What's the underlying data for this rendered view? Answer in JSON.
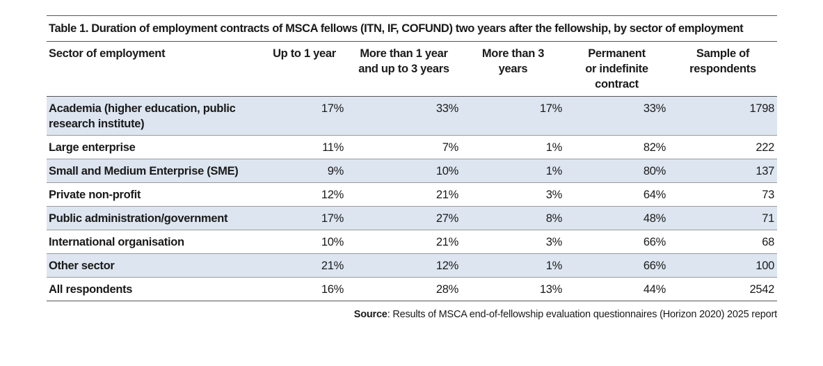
{
  "caption": "Table 1. Duration of employment contracts of MSCA fellows (ITN, IF, COFUND) two years after the fellowship, by sector of employment",
  "columns": [
    {
      "line1": "Sector of employment",
      "line2": "",
      "line3": ""
    },
    {
      "line1": "Up to 1 year",
      "line2": "",
      "line3": ""
    },
    {
      "line1": "More than 1 year",
      "line2": "and up to 3 years",
      "line3": ""
    },
    {
      "line1": "More than 3",
      "line2": "years",
      "line3": ""
    },
    {
      "line1": "Permanent",
      "line2": "or indefinite",
      "line3": "contract"
    },
    {
      "line1": "Sample of",
      "line2": "respondents",
      "line3": ""
    }
  ],
  "rows": [
    {
      "sector": "Academia (higher education, public research institute)",
      "up_to_1": "17%",
      "one_to_3": "33%",
      "more_than_3": "17%",
      "permanent": "33%",
      "sample": "1798"
    },
    {
      "sector": "Large enterprise",
      "up_to_1": "11%",
      "one_to_3": "7%",
      "more_than_3": "1%",
      "permanent": "82%",
      "sample": "222"
    },
    {
      "sector": "Small and Medium Enterprise (SME)",
      "up_to_1": "9%",
      "one_to_3": "10%",
      "more_than_3": "1%",
      "permanent": "80%",
      "sample": "137"
    },
    {
      "sector": "Private non-profit",
      "up_to_1": "12%",
      "one_to_3": "21%",
      "more_than_3": "3%",
      "permanent": "64%",
      "sample": "73"
    },
    {
      "sector": "Public administration/government",
      "up_to_1": "17%",
      "one_to_3": "27%",
      "more_than_3": "8%",
      "permanent": "48%",
      "sample": "71"
    },
    {
      "sector": "International organisation",
      "up_to_1": "10%",
      "one_to_3": "21%",
      "more_than_3": "3%",
      "permanent": "66%",
      "sample": "68"
    },
    {
      "sector": "Other sector",
      "up_to_1": "21%",
      "one_to_3": "12%",
      "more_than_3": "1%",
      "permanent": "66%",
      "sample": "100"
    },
    {
      "sector": "All respondents",
      "up_to_1": "16%",
      "one_to_3": "28%",
      "more_than_3": "13%",
      "permanent": "44%",
      "sample": "2542"
    }
  ],
  "source": {
    "label": "Source",
    "text": ": Results of MSCA end-of-fellowship evaluation questionnaires (Horizon 2020) 2025 report"
  },
  "colors": {
    "row_shade": "#dde5f0",
    "rule": "#555555"
  }
}
